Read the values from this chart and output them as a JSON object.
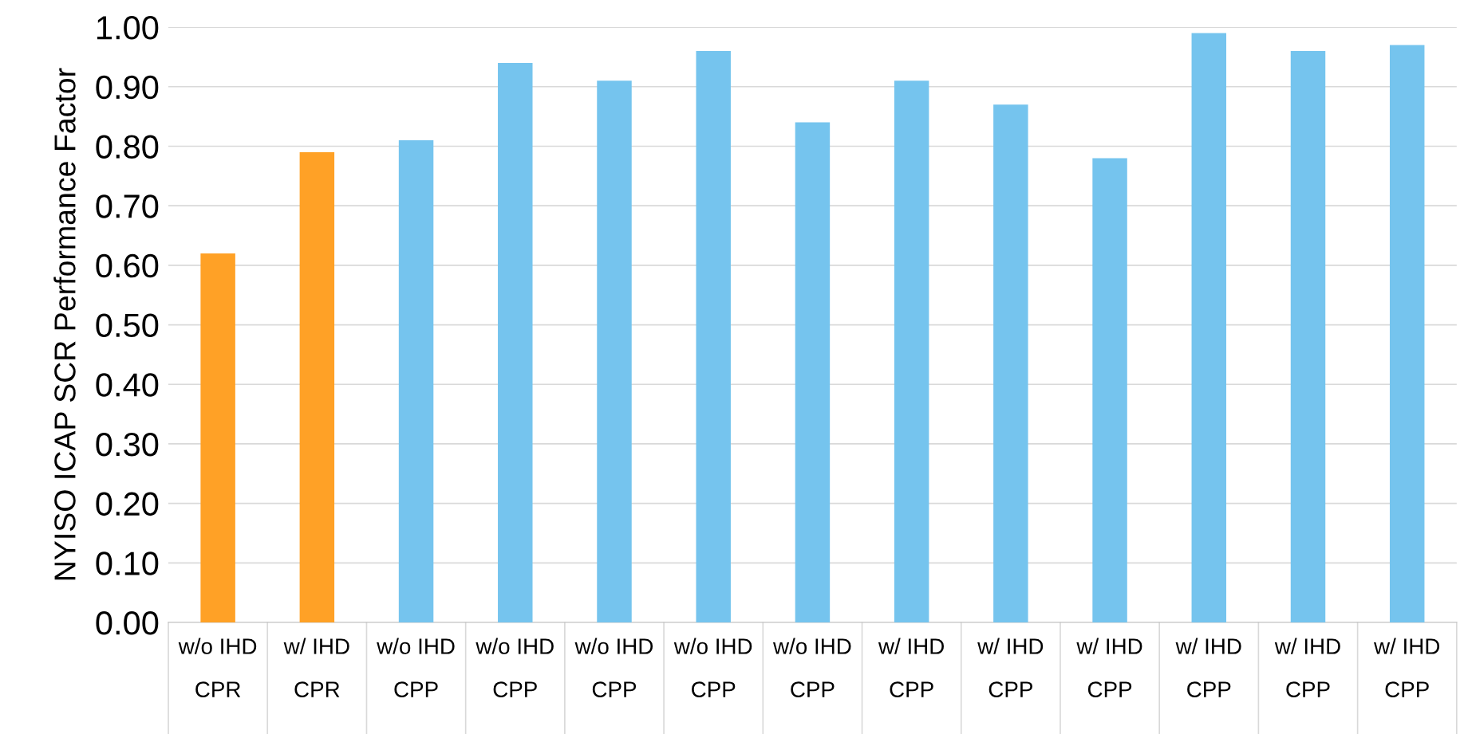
{
  "chart_data": {
    "type": "bar",
    "ylabel": "NYISO ICAP SCR Performance Factor",
    "categories": [
      "w/o IHD\nCPR",
      "w/ IHD\nCPR",
      "w/o IHD\nCPP",
      "w/o IHD\nCPP",
      "w/o IHD\nCPP",
      "w/o IHD\nCPP",
      "w/o IHD\nCPP",
      "w/ IHD\nCPP",
      "w/ IHD\nCPP",
      "w/ IHD\nCPP",
      "w/ IHD\nCPP",
      "w/ IHD\nCPP",
      "w/ IHD\nCPP"
    ],
    "values": [
      0.62,
      0.79,
      0.81,
      0.94,
      0.91,
      0.96,
      0.84,
      0.91,
      0.87,
      0.78,
      0.99,
      0.96,
      0.97
    ],
    "colors": [
      "#ffa126",
      "#ffa126",
      "#75c4ee",
      "#75c4ee",
      "#75c4ee",
      "#75c4ee",
      "#75c4ee",
      "#75c4ee",
      "#75c4ee",
      "#75c4ee",
      "#75c4ee",
      "#75c4ee",
      "#75c4ee"
    ],
    "ylim": [
      0,
      1.0
    ],
    "yticks": [
      {
        "value": 0,
        "label": "0.00"
      },
      {
        "value": 0.1,
        "label": "0.10"
      },
      {
        "value": 0.2,
        "label": "0.20"
      },
      {
        "value": 0.3,
        "label": "0.30"
      },
      {
        "value": 0.4,
        "label": "0.40"
      },
      {
        "value": 0.5,
        "label": "0.50"
      },
      {
        "value": 0.6,
        "label": "0.60"
      },
      {
        "value": 0.7,
        "label": "0.70"
      },
      {
        "value": 0.8,
        "label": "0.80"
      },
      {
        "value": 0.9,
        "label": "0.90"
      },
      {
        "value": 1.0,
        "label": "1.00"
      }
    ],
    "grid": "y",
    "legend": false
  }
}
